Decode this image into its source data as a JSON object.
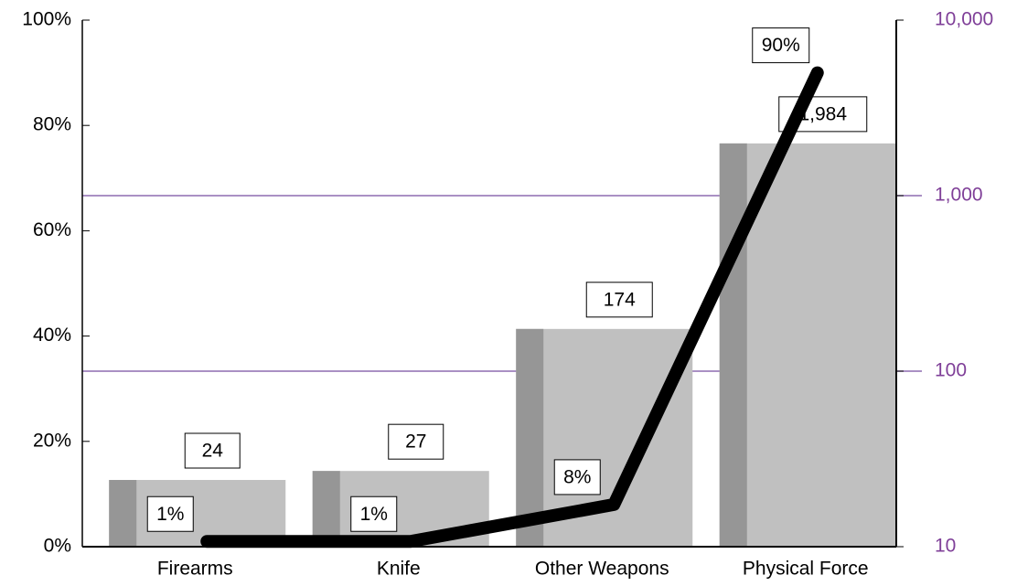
{
  "chart_data": {
    "type": "bar_line",
    "categories": [
      "Firearms",
      "Knife",
      "Other Weapons",
      "Physical Force"
    ],
    "series": [
      {
        "type": "bar",
        "color": "#c0c0c0",
        "side_color": "#969696",
        "axis": "y2",
        "values": [
          24,
          27,
          174,
          1984
        ],
        "value_labels": [
          "24",
          "27",
          "174",
          "1,984"
        ]
      },
      {
        "type": "line",
        "color": "#000000",
        "axis": "y",
        "values": [
          1,
          1,
          8,
          90
        ],
        "value_labels": [
          "1%",
          "1%",
          "8%",
          "90%"
        ]
      }
    ],
    "ylim": [
      0,
      100
    ],
    "yticks": [
      {
        "value": 0,
        "label": "0%"
      },
      {
        "value": 20,
        "label": "20%"
      },
      {
        "value": 40,
        "label": "40%"
      },
      {
        "value": 60,
        "label": "60%"
      },
      {
        "value": 80,
        "label": "80%"
      },
      {
        "value": 100,
        "label": "100%"
      }
    ],
    "y2lim": [
      10,
      10000
    ],
    "y2ticks": [
      10,
      100,
      {
        "value": 1000,
        "label": "1,000"
      },
      {
        "value": 10000,
        "label": "10,000"
      }
    ],
    "y2_log": true,
    "y2_color": "#7f3f98",
    "grid": true,
    "grid_color": "#8e6bb0"
  }
}
